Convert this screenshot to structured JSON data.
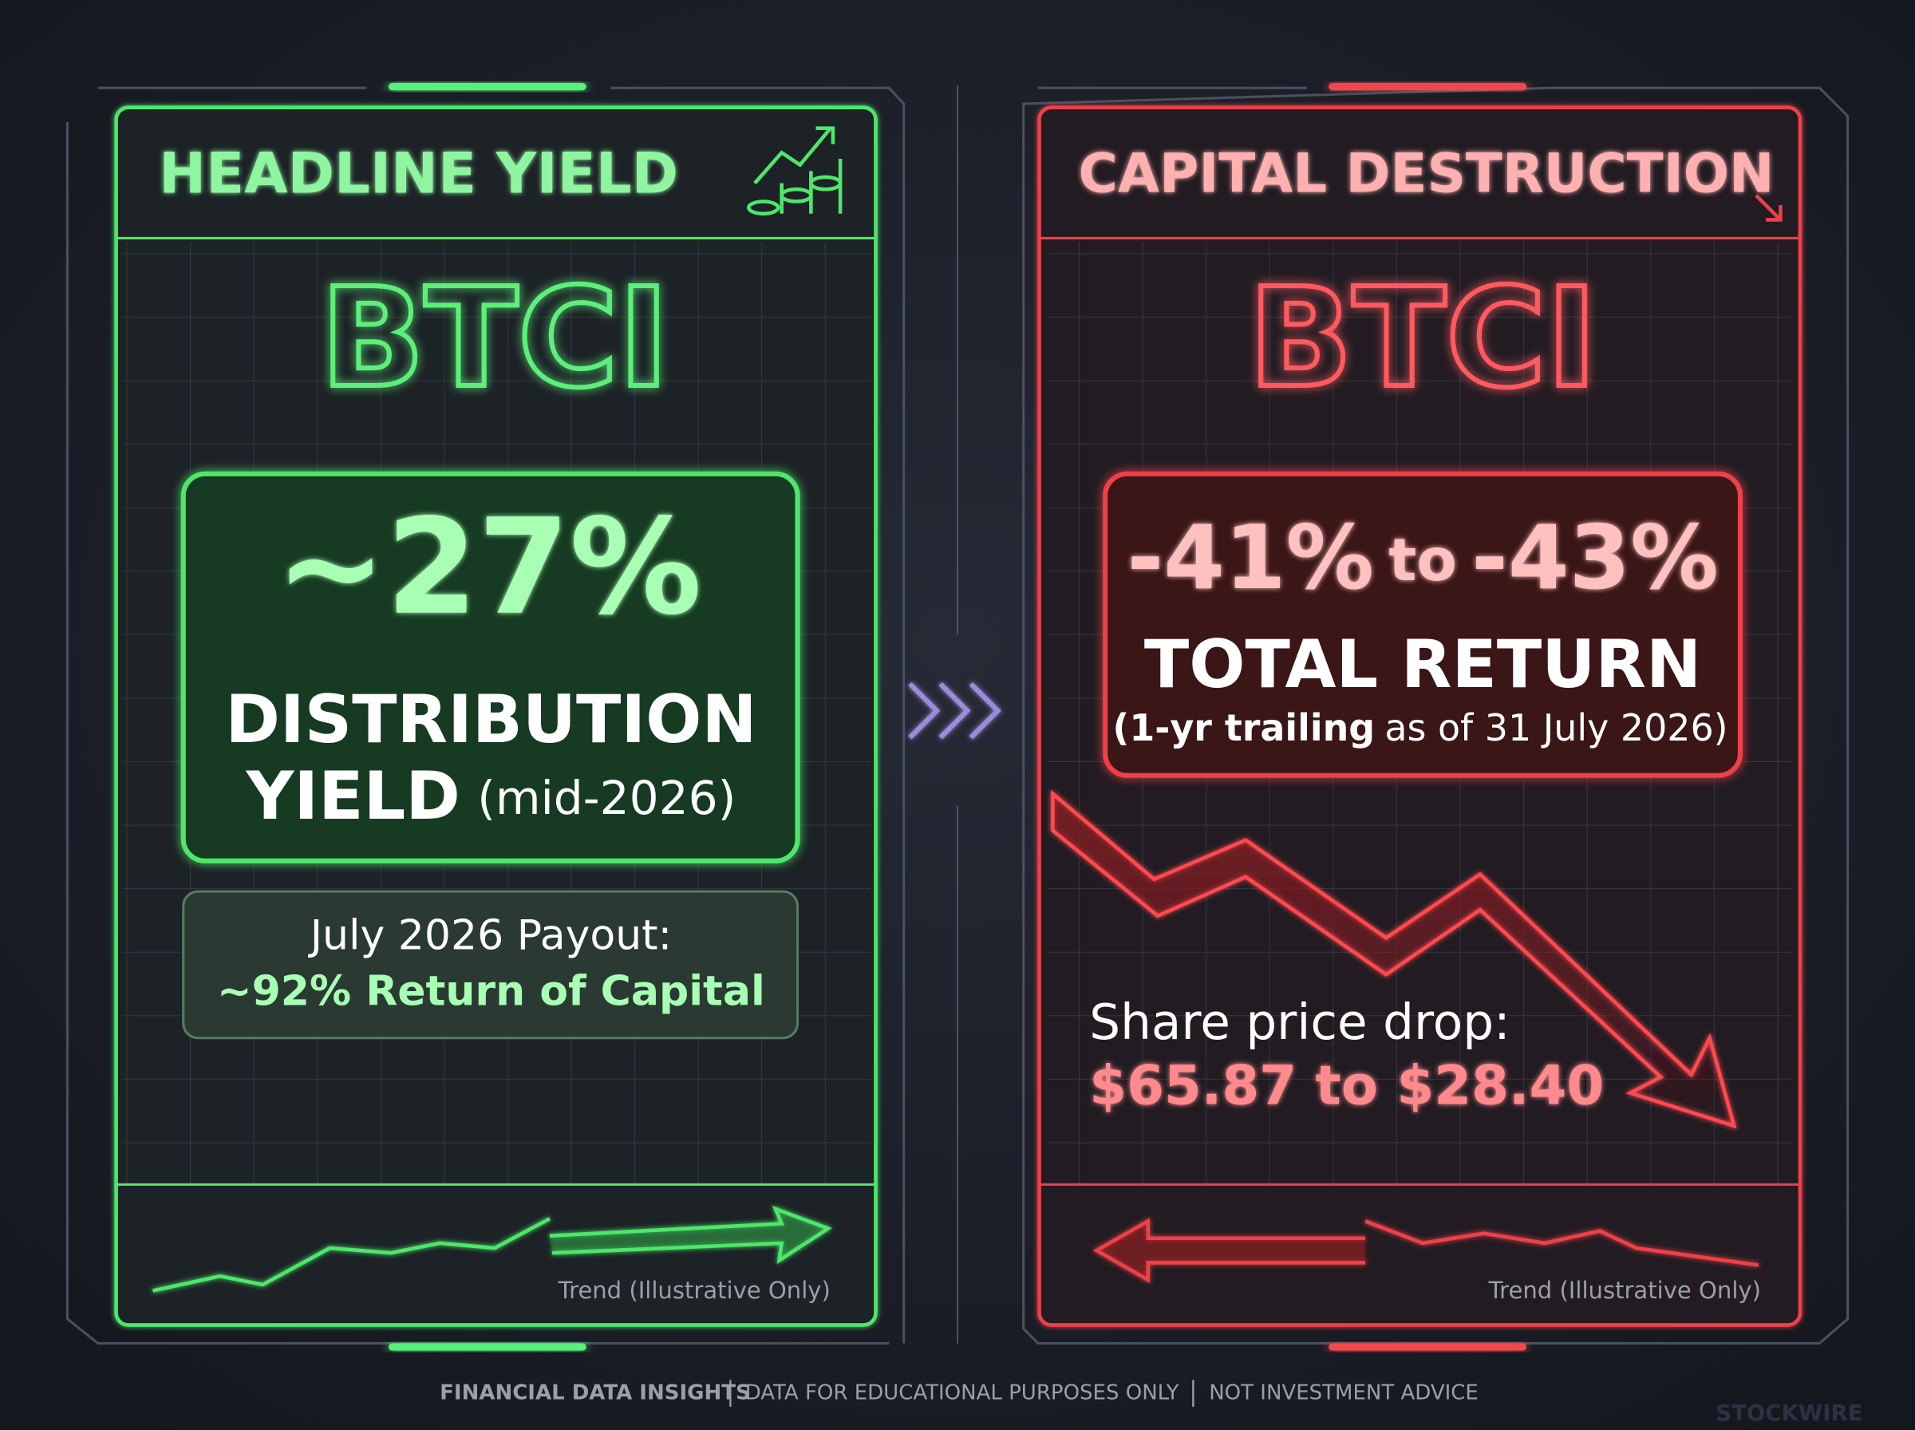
{
  "left_panel": {
    "title": "HEADLINE YIELD",
    "ticker": "BTCI",
    "headline": "~27%",
    "label_line1": "DISTRIBUTION",
    "label_line2": "YIELD",
    "label_note": "(mid-2026)",
    "payout_line1": "July 2026 Payout:",
    "payout_line2": "~92% Return of Capital",
    "trend_caption": "Trend (Illustrative Only)"
  },
  "right_panel": {
    "title": "CAPITAL DESTRUCTION",
    "ticker": "BTCI",
    "headline_from": "-41%",
    "headline_join": "to",
    "headline_to": "-43%",
    "label": "TOTAL RETURN",
    "note_bold": "(1-yr trailing",
    "note_rest": "as of 31 July 2026)",
    "drop_line1": "Share price drop:",
    "drop_line2": "$65.87 to $28.40",
    "trend_caption": "Trend (Illustrative Only)"
  },
  "footer": {
    "items": [
      "FINANCIAL DATA INSIGHTS",
      "DATA FOR EDUCATIONAL PURPOSES ONLY",
      "NOT INVESTMENT ADVICE"
    ],
    "watermark": "STOCKWIRE"
  }
}
